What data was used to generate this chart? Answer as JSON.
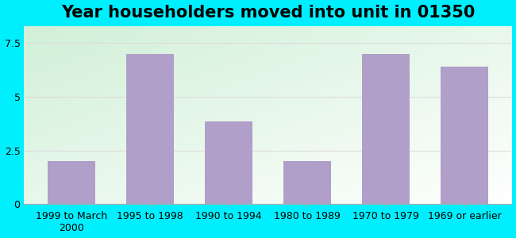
{
  "title": "Year householders moved into unit in 01350",
  "categories": [
    "1999 to March\n2000",
    "1995 to 1998",
    "1990 to 1994",
    "1980 to 1989",
    "1970 to 1979",
    "1969 or earlier"
  ],
  "values": [
    2.0,
    7.0,
    3.85,
    2.0,
    7.0,
    6.4
  ],
  "bar_color": "#b09fc8",
  "background_outer": "#00efff",
  "ylim": [
    0,
    8.3
  ],
  "yticks": [
    0,
    2.5,
    5,
    7.5
  ],
  "title_fontsize": 15,
  "tick_fontsize": 9,
  "grid_color": "#dddddd",
  "figsize": [
    6.5,
    3.0
  ],
  "dpi": 100
}
